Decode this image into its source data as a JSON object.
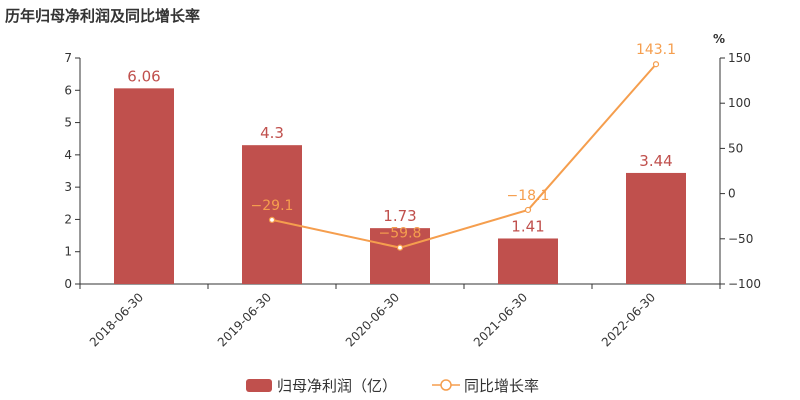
{
  "chart_data": {
    "type": "bar",
    "title": "历年归母净利润及同比增长率",
    "categories": [
      "2018-06-30",
      "2019-06-30",
      "2020-06-30",
      "2021-06-30",
      "2022-06-30"
    ],
    "series": [
      {
        "name": "归母净利润（亿）",
        "type": "bar",
        "axis": "left",
        "color": "#c0504d",
        "values": [
          6.06,
          4.3,
          1.73,
          1.41,
          3.44
        ],
        "labels": [
          "6.06",
          "4.3",
          "1.73",
          "1.41",
          "3.44"
        ]
      },
      {
        "name": "同比增长率",
        "type": "line",
        "axis": "right",
        "color": "#f59e4e",
        "values": [
          null,
          -29.1,
          -59.8,
          -18.1,
          143.1
        ],
        "labels": [
          "",
          "−29.1",
          "−59.8",
          "−18.1",
          "143.1"
        ]
      }
    ],
    "y_left": {
      "min": 0,
      "max": 7,
      "ticks": [
        0,
        1,
        2,
        3,
        4,
        5,
        6,
        7
      ]
    },
    "y_right": {
      "min": -100,
      "max": 150,
      "ticks": [
        -100,
        -50,
        0,
        50,
        100,
        150
      ],
      "tick_labels": [
        "−100",
        "−50",
        "0",
        "50",
        "100",
        "150"
      ],
      "unit": "%"
    },
    "legend_position": "bottom-center",
    "grid": false
  }
}
